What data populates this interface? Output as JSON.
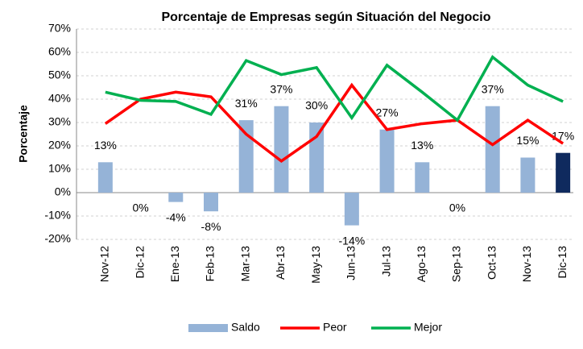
{
  "chart_data": {
    "type": "combo",
    "title": "Porcentaje de Empresas según Situación del Negocio",
    "y_label": "Porcentaje",
    "categories": [
      "Nov-12",
      "Dic-12",
      "Ene-13",
      "Feb-13",
      "Mar-13",
      "Abr-13",
      "May-13",
      "Jun-13",
      "Jul-13",
      "Ago-13",
      "Sep-13",
      "Oct-13",
      "Nov-13",
      "Dic-13"
    ],
    "series": [
      {
        "name": "Saldo",
        "type": "bar",
        "color": "#95b3d7",
        "colors": [
          "#95b3d7",
          "#95b3d7",
          "#95b3d7",
          "#95b3d7",
          "#95b3d7",
          "#95b3d7",
          "#95b3d7",
          "#95b3d7",
          "#95b3d7",
          "#95b3d7",
          "#95b3d7",
          "#95b3d7",
          "#95b3d7",
          "#0f2a5e"
        ],
        "values": [
          13,
          0,
          -4,
          -8,
          31,
          37,
          30,
          -14,
          27,
          13,
          0,
          37,
          15,
          17
        ],
        "value_labels": [
          "13%",
          "0%",
          "-4%",
          "-8%",
          "31%",
          "37%",
          "30%",
          "-14%",
          "27%",
          "13%",
          "0%",
          "37%",
          "15%",
          "17%"
        ]
      },
      {
        "name": "Peor",
        "type": "line",
        "color": "#ff0000",
        "values": [
          29.5,
          40,
          43,
          41,
          25,
          13.5,
          24,
          46,
          27,
          29.5,
          31,
          20.5,
          31,
          21
        ]
      },
      {
        "name": "Mejor",
        "type": "line",
        "color": "#00b050",
        "values": [
          43,
          39.5,
          39,
          33.5,
          56.5,
          50.5,
          53.5,
          32,
          54.5,
          43,
          31,
          58,
          46,
          39
        ]
      }
    ],
    "ylim": [
      -20,
      70
    ],
    "yticks": [
      {
        "value": -20,
        "label": "-20%"
      },
      {
        "value": -10,
        "label": "-10%"
      },
      {
        "value": 0,
        "label": "0%"
      },
      {
        "value": 10,
        "label": "10%"
      },
      {
        "value": 20,
        "label": "20%"
      },
      {
        "value": 30,
        "label": "30%"
      },
      {
        "value": 40,
        "label": "40%"
      },
      {
        "value": 50,
        "label": "50%"
      },
      {
        "value": 60,
        "label": "60%"
      },
      {
        "value": 70,
        "label": "70%"
      }
    ],
    "grid": true,
    "legend": "bottom"
  }
}
